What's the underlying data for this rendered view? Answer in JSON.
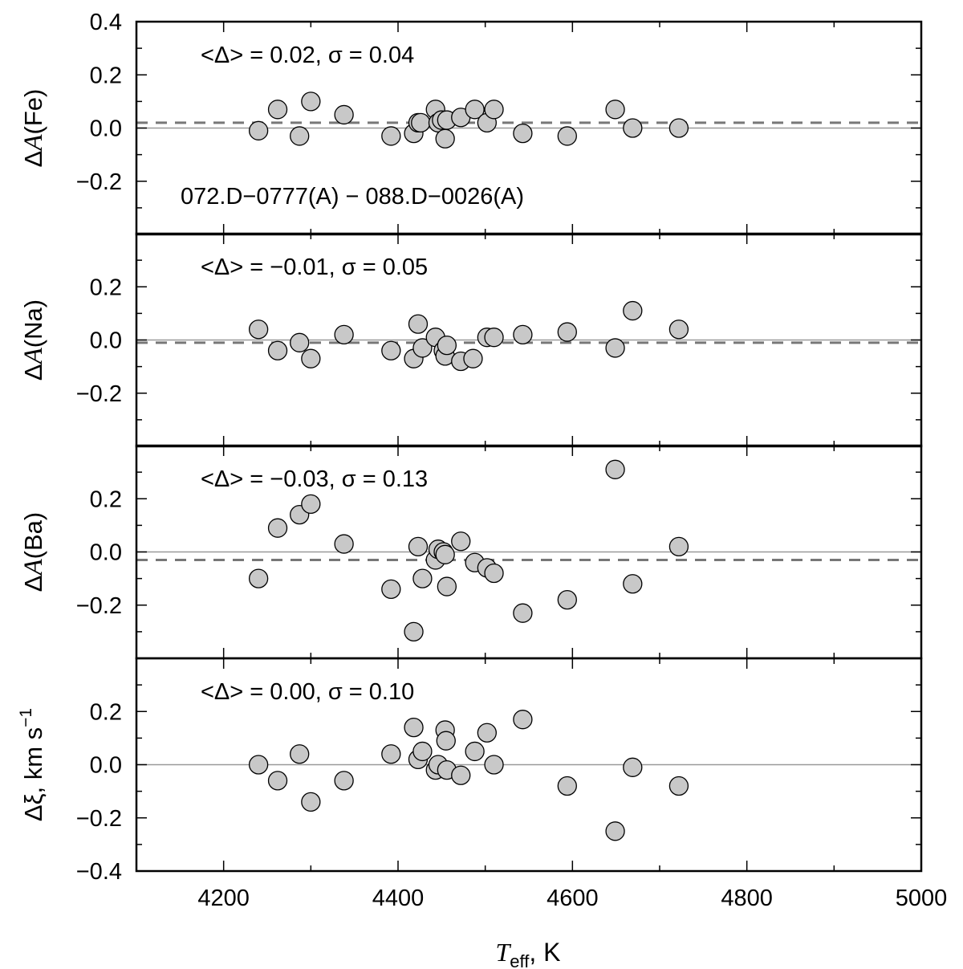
{
  "chart_data": {
    "type": "scatter",
    "xlabel": "T_eff, K",
    "xlabel_parts": {
      "symbol": "T",
      "subscript": "eff",
      "unit": ", K"
    },
    "xlim": [
      4100,
      5000
    ],
    "x_ticks": [
      4200,
      4400,
      4600,
      4800,
      5000
    ],
    "x_tick_labels": [
      "4200",
      "4400",
      "4600",
      "4800",
      "5000"
    ],
    "marker_color": "#c8c8c8",
    "mean_line_color": "#777777",
    "zero_line_color": "#999999",
    "panels": [
      {
        "name": "fe",
        "ylabel": "ΔA(Fe)",
        "ylabel_parts": {
          "delta": "Δ",
          "symbol": "A",
          "rest": "(Fe)"
        },
        "ylim": [
          -0.4,
          0.4
        ],
        "y_ticks": [
          0.4,
          0.2,
          0.0,
          -0.2
        ],
        "y_tick_labels": [
          "0.4",
          "0.2",
          "0.0",
          "−0.2"
        ],
        "stats": "<Δ> = 0.02, σ = 0.04",
        "note": "072.D−0777(A) − 088.D−0026(A)",
        "mean": 0.02,
        "x": [
          4240,
          4262,
          4287,
          4300,
          4338,
          4392,
          4418,
          4423,
          4426,
          4443,
          4446,
          4450,
          4454,
          4456,
          4472,
          4488,
          4502,
          4510,
          4543,
          4594,
          4649,
          4669,
          4722
        ],
        "y": [
          -0.01,
          0.07,
          -0.03,
          0.1,
          0.05,
          -0.03,
          -0.02,
          0.02,
          0.02,
          0.07,
          0.02,
          0.03,
          -0.04,
          0.03,
          0.04,
          0.07,
          0.02,
          0.07,
          -0.02,
          -0.03,
          0.07,
          0.0,
          0.0
        ]
      },
      {
        "name": "na",
        "ylabel": "ΔA(Na)",
        "ylabel_parts": {
          "delta": "Δ",
          "symbol": "A",
          "rest": "(Na)"
        },
        "ylim": [
          -0.4,
          0.4
        ],
        "y_ticks": [
          0.2,
          0.0,
          -0.2
        ],
        "y_tick_labels": [
          "0.2",
          "0.0",
          "−0.2"
        ],
        "stats": "<Δ> = −0.01, σ = 0.05",
        "mean": -0.01,
        "x": [
          4240,
          4262,
          4287,
          4300,
          4338,
          4392,
          4418,
          4423,
          4428,
          4443,
          4452,
          4454,
          4456,
          4472,
          4486,
          4502,
          4510,
          4543,
          4594,
          4649,
          4669,
          4722
        ],
        "y": [
          0.04,
          -0.04,
          -0.01,
          -0.07,
          0.02,
          -0.04,
          -0.07,
          0.06,
          -0.03,
          0.01,
          -0.04,
          -0.06,
          -0.02,
          -0.08,
          -0.07,
          0.01,
          0.01,
          0.02,
          0.03,
          -0.03,
          0.11,
          0.04
        ]
      },
      {
        "name": "ba",
        "ylabel": "ΔA(Ba)",
        "ylabel_parts": {
          "delta": "Δ",
          "symbol": "A",
          "rest": "(Ba)"
        },
        "ylim": [
          -0.4,
          0.4
        ],
        "y_ticks": [
          0.2,
          0.0,
          -0.2
        ],
        "y_tick_labels": [
          "0.2",
          "0.0",
          "−0.2"
        ],
        "stats": "<Δ> = −0.03, σ = 0.13",
        "mean": -0.03,
        "x": [
          4240,
          4262,
          4287,
          4300,
          4338,
          4392,
          4418,
          4423,
          4428,
          4443,
          4446,
          4452,
          4454,
          4456,
          4472,
          4488,
          4502,
          4510,
          4543,
          4594,
          4649,
          4669,
          4722
        ],
        "y": [
          -0.1,
          0.09,
          0.14,
          0.18,
          0.03,
          -0.14,
          -0.3,
          0.02,
          -0.1,
          -0.03,
          0.01,
          0.0,
          -0.01,
          -0.13,
          0.04,
          -0.04,
          -0.06,
          -0.08,
          -0.23,
          -0.18,
          0.31,
          -0.12,
          0.02
        ]
      },
      {
        "name": "xi",
        "ylabel": "Δξ, km s−1",
        "ylabel_parts": {
          "delta": "Δ",
          "symbol": "ξ",
          "rest": ", km s",
          "sup": "−1"
        },
        "ylim": [
          -0.4,
          0.4
        ],
        "y_ticks": [
          0.2,
          0.0,
          -0.2,
          -0.4
        ],
        "y_tick_labels": [
          "0.2",
          "0.0",
          "−0.2",
          "−0.4"
        ],
        "stats": "<Δ> = 0.00, σ = 0.10",
        "mean": null,
        "x": [
          4240,
          4262,
          4287,
          4300,
          4338,
          4392,
          4418,
          4423,
          4428,
          4443,
          4446,
          4454,
          4455,
          4456,
          4472,
          4488,
          4502,
          4510,
          4543,
          4594,
          4649,
          4669,
          4722
        ],
        "y": [
          0.0,
          -0.06,
          0.04,
          -0.14,
          -0.06,
          0.04,
          0.14,
          0.02,
          0.05,
          -0.02,
          0.0,
          0.13,
          0.09,
          -0.02,
          -0.04,
          0.05,
          0.12,
          0.0,
          0.17,
          -0.08,
          -0.25,
          -0.01,
          -0.08
        ]
      }
    ]
  }
}
